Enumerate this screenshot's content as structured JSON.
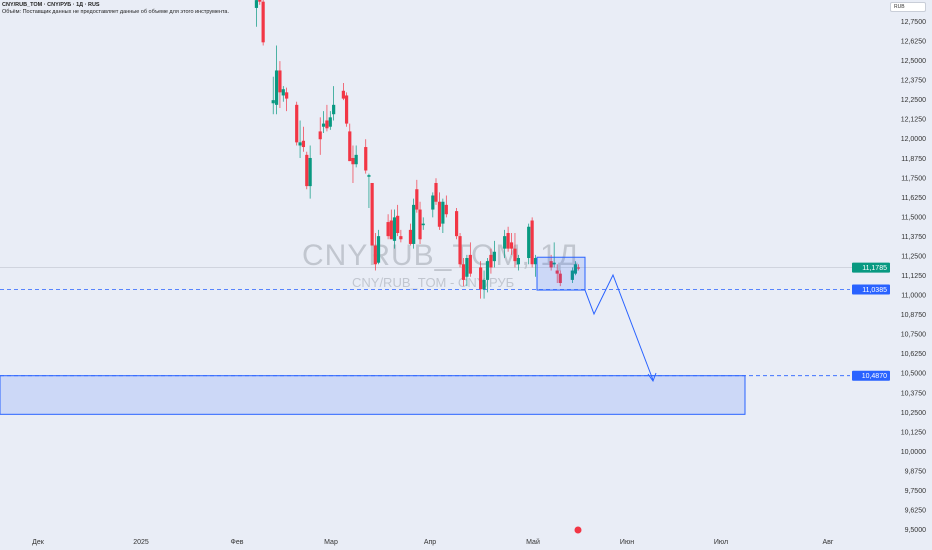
{
  "header": {
    "title": "CNY/RUB_TOM · CNY/РУБ · 1Д · RUS",
    "volume_note": "Объём: Поставщик данных не предоставляет данные об объеме для этого инструмента."
  },
  "currency_button": "RUB",
  "watermark": {
    "main": "CNYRUB_TOM, 1Д",
    "sub": "CNY/RUB_TOM - CNY/РУБ"
  },
  "colors": {
    "up": "#089981",
    "down": "#f23645",
    "drawing": "#2962ff",
    "background": "#e9edf6"
  },
  "price_axis": [
    "12,7500",
    "12,6250",
    "12,5000",
    "12,3750",
    "12,2500",
    "12,1250",
    "12,0000",
    "11,8750",
    "11,7500",
    "11,6250",
    "11,5000",
    "11,3750",
    "11,2500",
    "11,1250",
    "11,0000",
    "10,8750",
    "10,7500",
    "10,6250",
    "10,5000",
    "10,3750",
    "10,2500",
    "10,1250",
    "10,0000",
    "9,8750",
    "9,7500",
    "9,6250",
    "9,5000"
  ],
  "time_axis": [
    {
      "label": "Дек",
      "date": "2024-12-01"
    },
    {
      "label": "2025",
      "date": "2025-01-01"
    },
    {
      "label": "Фев",
      "date": "2025-02-01"
    },
    {
      "label": "Мар",
      "date": "2025-03-01"
    },
    {
      "label": "Апр",
      "date": "2025-04-01"
    },
    {
      "label": "Май",
      "date": "2025-05-01"
    },
    {
      "label": "Июн",
      "date": "2025-06-01"
    },
    {
      "label": "Июл",
      "date": "2025-07-01"
    },
    {
      "label": "Авг",
      "date": "2025-08-01"
    }
  ],
  "last_price": {
    "label": "11,1785",
    "value": 11.1785
  },
  "levels": [
    {
      "label": "11,0385",
      "value": 11.0385
    },
    {
      "label": "10,4870",
      "value": 10.487
    }
  ],
  "zone": {
    "top": 10.487,
    "bottom": 10.24
  },
  "chart_data": {
    "type": "candlestick",
    "ylim": [
      9.5,
      12.75
    ],
    "candles": [
      [
        "2025-02-05",
        12.84,
        12.95,
        12.72,
        12.89
      ],
      [
        "2025-02-06",
        12.92,
        12.98,
        12.86,
        12.88
      ],
      [
        "2025-02-07",
        12.88,
        12.92,
        12.6,
        12.62
      ],
      [
        "2025-02-10",
        12.23,
        12.4,
        12.16,
        12.25
      ],
      [
        "2025-02-11",
        12.22,
        12.6,
        12.16,
        12.44
      ],
      [
        "2025-02-12",
        12.44,
        12.5,
        12.2,
        12.3
      ],
      [
        "2025-02-13",
        12.28,
        12.34,
        12.24,
        12.32
      ],
      [
        "2025-02-14",
        12.3,
        12.33,
        12.18,
        12.26
      ],
      [
        "2025-02-17",
        12.22,
        12.24,
        11.96,
        11.98
      ],
      [
        "2025-02-18",
        11.96,
        12.12,
        11.88,
        11.98
      ],
      [
        "2025-02-19",
        11.99,
        12.08,
        11.92,
        11.95
      ],
      [
        "2025-02-20",
        11.9,
        11.92,
        11.68,
        11.7
      ],
      [
        "2025-02-21",
        11.7,
        11.96,
        11.62,
        11.88
      ],
      [
        "2025-02-24",
        12.05,
        12.14,
        11.9,
        12.0
      ],
      [
        "2025-02-25",
        12.08,
        12.18,
        12.04,
        12.1
      ],
      [
        "2025-02-26",
        12.12,
        12.22,
        12.05,
        12.07
      ],
      [
        "2025-02-27",
        12.08,
        12.18,
        12.06,
        12.14
      ],
      [
        "2025-02-28",
        12.16,
        12.34,
        12.12,
        12.22
      ],
      [
        "2025-03-03",
        12.31,
        12.36,
        12.25,
        12.26
      ],
      [
        "2025-03-04",
        12.28,
        12.3,
        12.08,
        12.1
      ],
      [
        "2025-03-05",
        12.05,
        12.1,
        11.86,
        11.86
      ],
      [
        "2025-03-06",
        11.88,
        11.96,
        11.72,
        11.84
      ],
      [
        "2025-03-07",
        11.84,
        11.96,
        11.82,
        11.9
      ],
      [
        "2025-03-10",
        11.95,
        12.0,
        11.78,
        11.8
      ],
      [
        "2025-03-11",
        11.76,
        11.78,
        11.56,
        11.77
      ],
      [
        "2025-03-12",
        11.72,
        11.72,
        11.32,
        11.32
      ],
      [
        "2025-03-13",
        11.32,
        11.4,
        11.16,
        11.2
      ],
      [
        "2025-03-14",
        11.21,
        11.42,
        11.2,
        11.38
      ],
      [
        "2025-03-17",
        11.47,
        11.52,
        11.36,
        11.38
      ],
      [
        "2025-03-18",
        11.48,
        11.55,
        11.36,
        11.36
      ],
      [
        "2025-03-19",
        11.35,
        11.55,
        11.3,
        11.5
      ],
      [
        "2025-03-20",
        11.51,
        11.58,
        11.38,
        11.4
      ],
      [
        "2025-03-21",
        11.38,
        11.42,
        11.34,
        11.36
      ],
      [
        "2025-03-24",
        11.42,
        11.46,
        11.32,
        11.33
      ],
      [
        "2025-03-25",
        11.33,
        11.62,
        11.3,
        11.58
      ],
      [
        "2025-03-26",
        11.68,
        11.74,
        11.53,
        11.55
      ],
      [
        "2025-03-27",
        11.55,
        11.6,
        11.33,
        11.36
      ],
      [
        "2025-03-28",
        11.45,
        11.5,
        11.42,
        11.46
      ],
      [
        "2025-03-31",
        11.55,
        11.66,
        11.5,
        11.64
      ],
      [
        "2025-04-01",
        11.72,
        11.75,
        11.58,
        11.6
      ],
      [
        "2025-04-02",
        11.6,
        11.66,
        11.42,
        11.44
      ],
      [
        "2025-04-03",
        11.46,
        11.62,
        11.4,
        11.6
      ],
      [
        "2025-04-04",
        11.58,
        11.64,
        11.5,
        11.52
      ],
      [
        "2025-04-07",
        11.54,
        11.56,
        11.36,
        11.38
      ],
      [
        "2025-04-08",
        11.38,
        11.4,
        11.18,
        11.2
      ],
      [
        "2025-04-09",
        11.2,
        11.24,
        11.06,
        11.1
      ],
      [
        "2025-04-10",
        11.12,
        11.26,
        11.06,
        11.24
      ],
      [
        "2025-04-11",
        11.26,
        11.34,
        11.12,
        11.14
      ],
      [
        "2025-04-14",
        11.18,
        11.22,
        10.98,
        11.04
      ],
      [
        "2025-04-15",
        11.04,
        11.16,
        10.98,
        11.1
      ],
      [
        "2025-04-16",
        11.1,
        11.24,
        11.02,
        11.22
      ],
      [
        "2025-04-17",
        11.26,
        11.3,
        11.14,
        11.18
      ],
      [
        "2025-04-18",
        11.22,
        11.35,
        11.18,
        11.28
      ],
      [
        "2025-04-21",
        11.3,
        11.42,
        11.24,
        11.38
      ],
      [
        "2025-04-22",
        11.4,
        11.44,
        11.28,
        11.3
      ],
      [
        "2025-04-23",
        11.34,
        11.4,
        11.26,
        11.3
      ],
      [
        "2025-04-24",
        11.3,
        11.4,
        11.18,
        11.22
      ],
      [
        "2025-04-25",
        11.2,
        11.26,
        11.16,
        11.24
      ],
      [
        "2025-04-28",
        11.24,
        11.46,
        11.2,
        11.44
      ],
      [
        "2025-04-29",
        11.48,
        11.5,
        11.18,
        11.2
      ],
      [
        "2025-04-30",
        11.2,
        11.26,
        11.12,
        11.24
      ],
      [
        "2025-05-05",
        11.22,
        11.26,
        11.16,
        11.18
      ],
      [
        "2025-05-06",
        11.2,
        11.34,
        11.18,
        11.21
      ],
      [
        "2025-05-07",
        11.16,
        11.2,
        11.08,
        11.14
      ],
      [
        "2025-05-08",
        11.14,
        11.16,
        11.06,
        11.08
      ],
      [
        "2025-05-12",
        11.1,
        11.18,
        11.08,
        11.16
      ],
      [
        "2025-05-13",
        11.14,
        11.22,
        11.13,
        11.2
      ],
      [
        "2025-05-14",
        11.18,
        11.2,
        11.16,
        11.1785
      ]
    ]
  }
}
